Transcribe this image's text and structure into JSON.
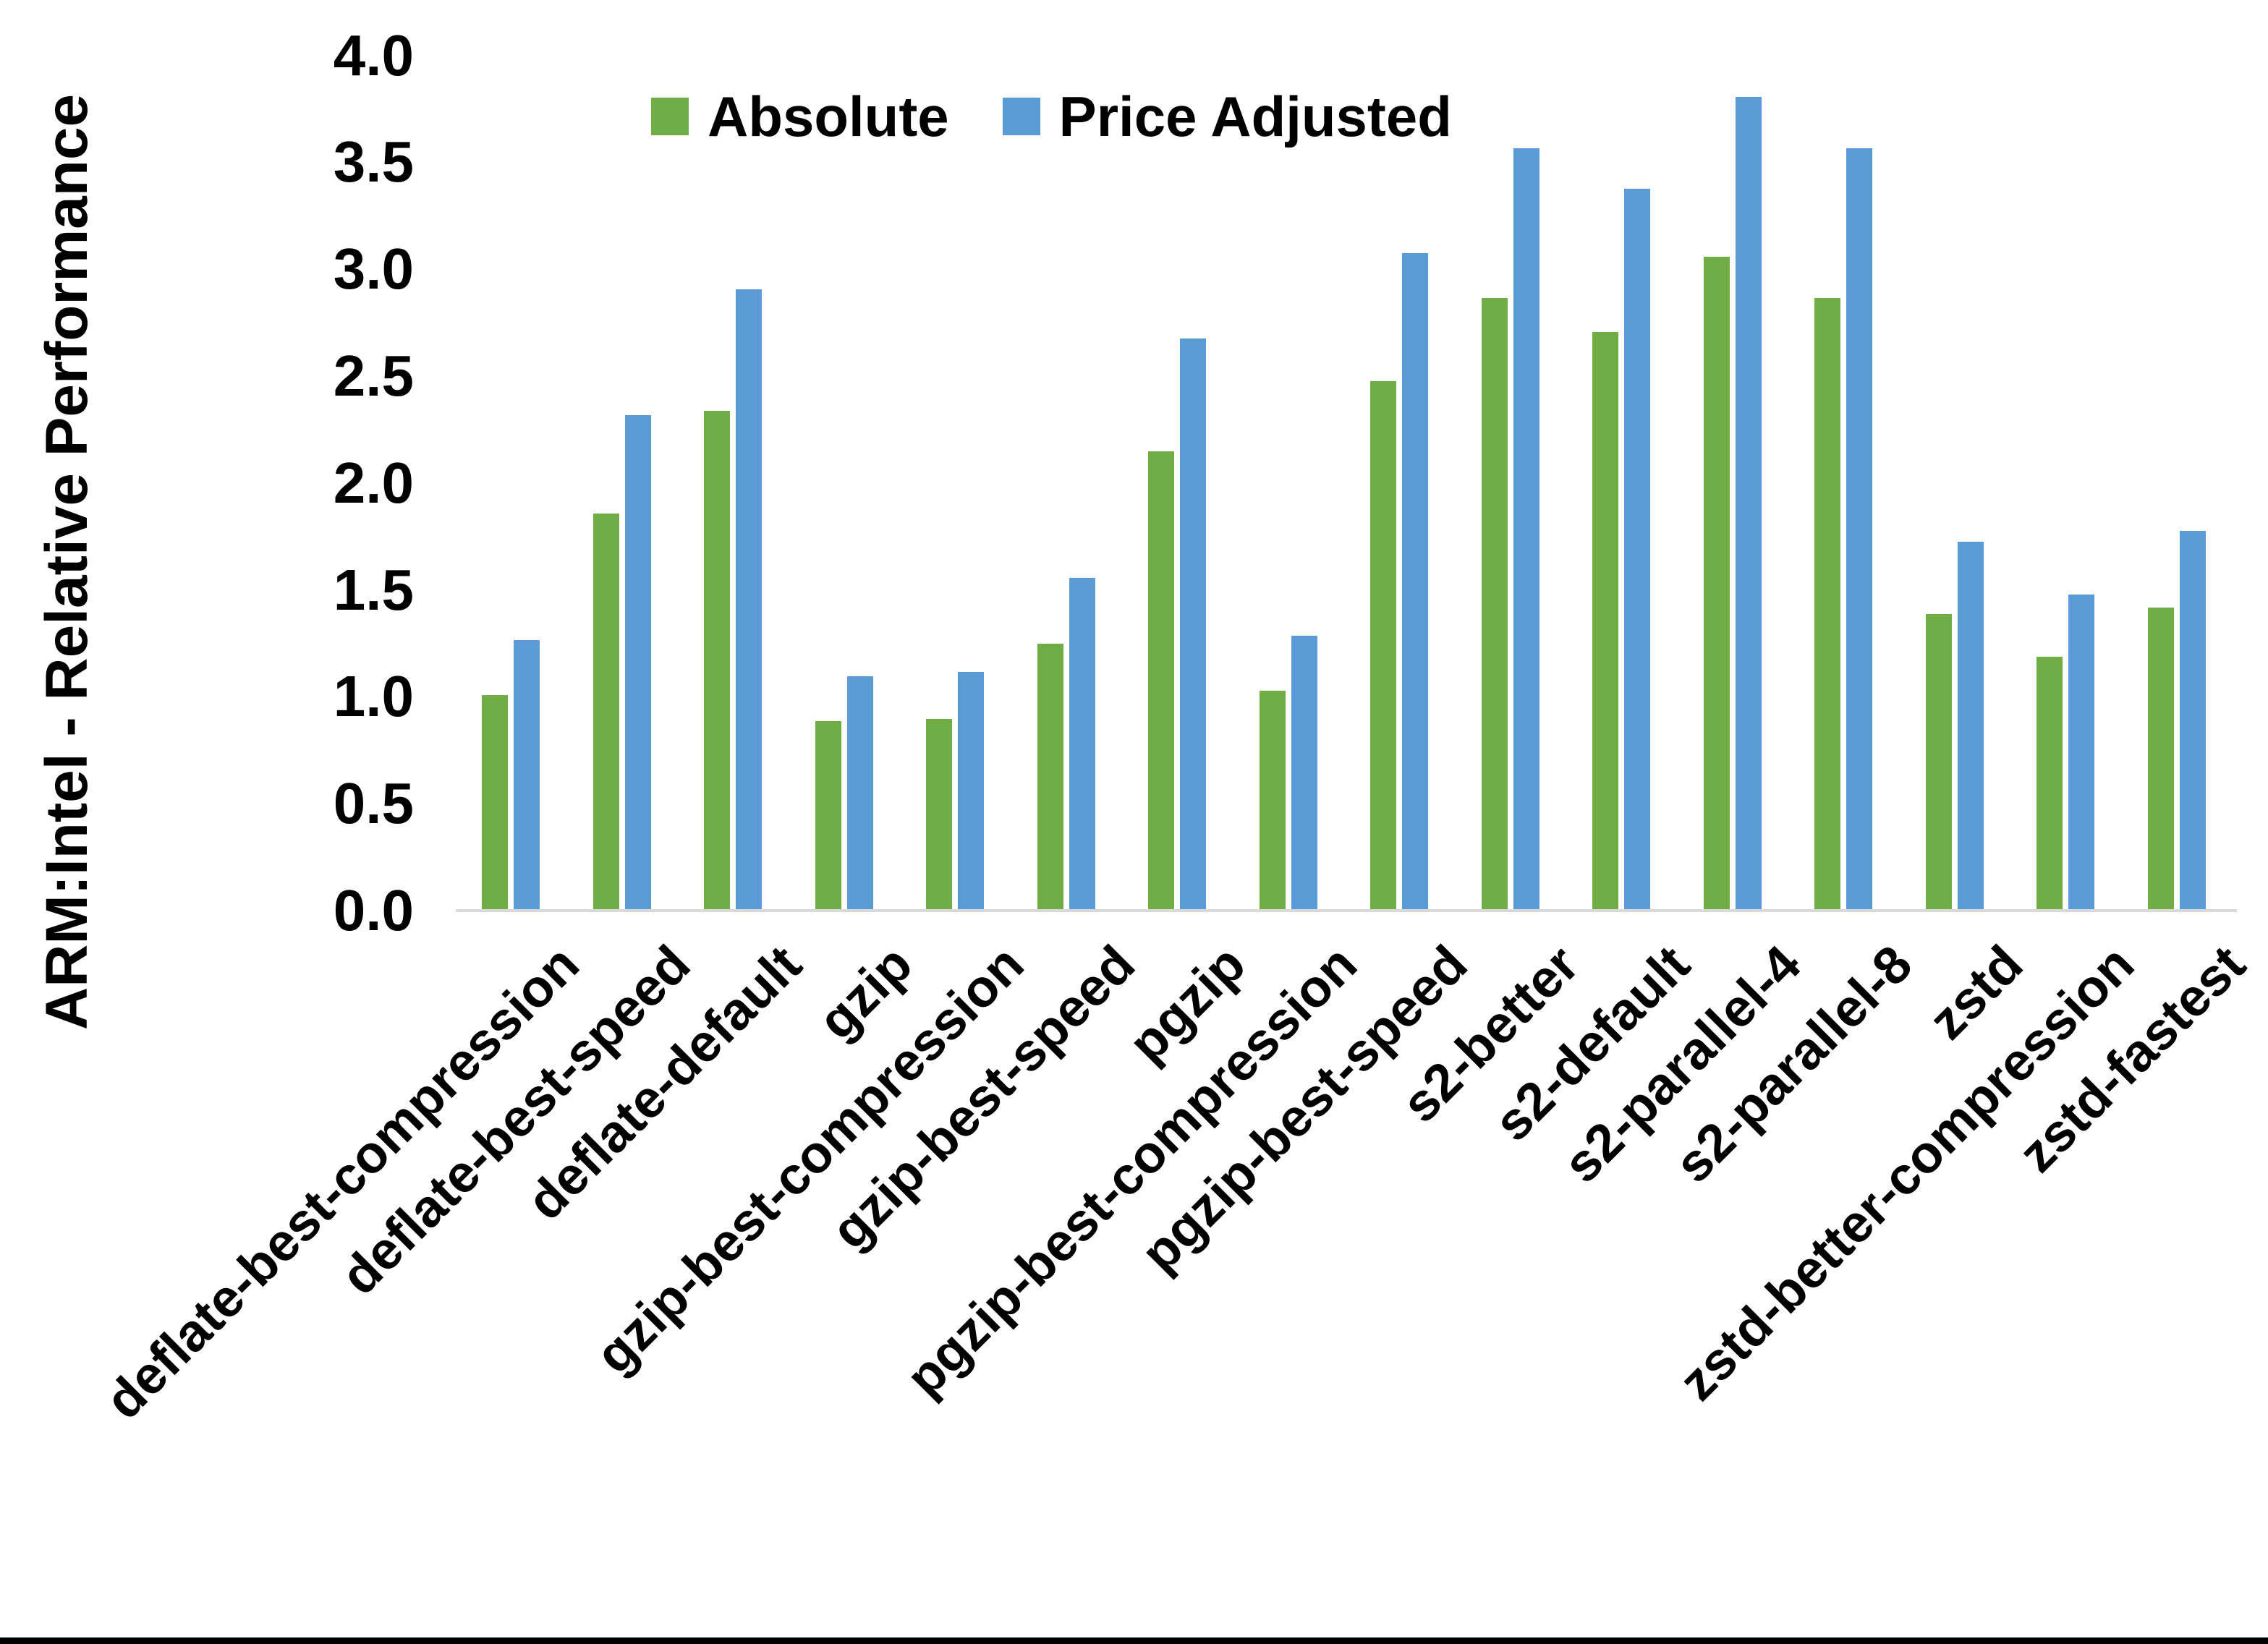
{
  "chart_data": {
    "type": "bar",
    "title": "",
    "xlabel": "",
    "ylabel": "ARM:Intel - Relative Performance",
    "ylim": [
      0.0,
      4.0
    ],
    "ytick_step": 0.5,
    "ytick_labels": [
      "0.0",
      "0.5",
      "1.0",
      "1.5",
      "2.0",
      "2.5",
      "3.0",
      "3.5",
      "4.0"
    ],
    "grid": false,
    "legend_position": "top-center",
    "categories": [
      "deflate-best-compression",
      "deflate-best-speed",
      "deflate-default",
      "gzip",
      "gzip-best-compression",
      "gzip-best-speed",
      "pgzip",
      "pgzip-best-compression",
      "pgzip-best-speed",
      "s2-better",
      "s2-default",
      "s2-parallel-4",
      "s2-parallel-8",
      "zstd",
      "zstd-better-compression",
      "zstd-fastest"
    ],
    "series": [
      {
        "name": "Absolute",
        "color": "#70AD47",
        "values": [
          1.0,
          1.85,
          2.33,
          0.88,
          0.89,
          1.24,
          2.14,
          1.02,
          2.47,
          2.86,
          2.7,
          3.05,
          2.86,
          1.38,
          1.18,
          1.41
        ]
      },
      {
        "name": "Price Adjusted",
        "color": "#5B9BD5",
        "values": [
          1.26,
          2.31,
          2.9,
          1.09,
          1.11,
          1.55,
          2.67,
          1.28,
          3.07,
          3.56,
          3.37,
          3.8,
          3.56,
          1.72,
          1.47,
          1.77
        ]
      }
    ],
    "axis_line_color": "#D9D9D9",
    "text_color": "#000000",
    "background_color": "#FFFFFF",
    "bottom_edge_color": "#000000"
  }
}
